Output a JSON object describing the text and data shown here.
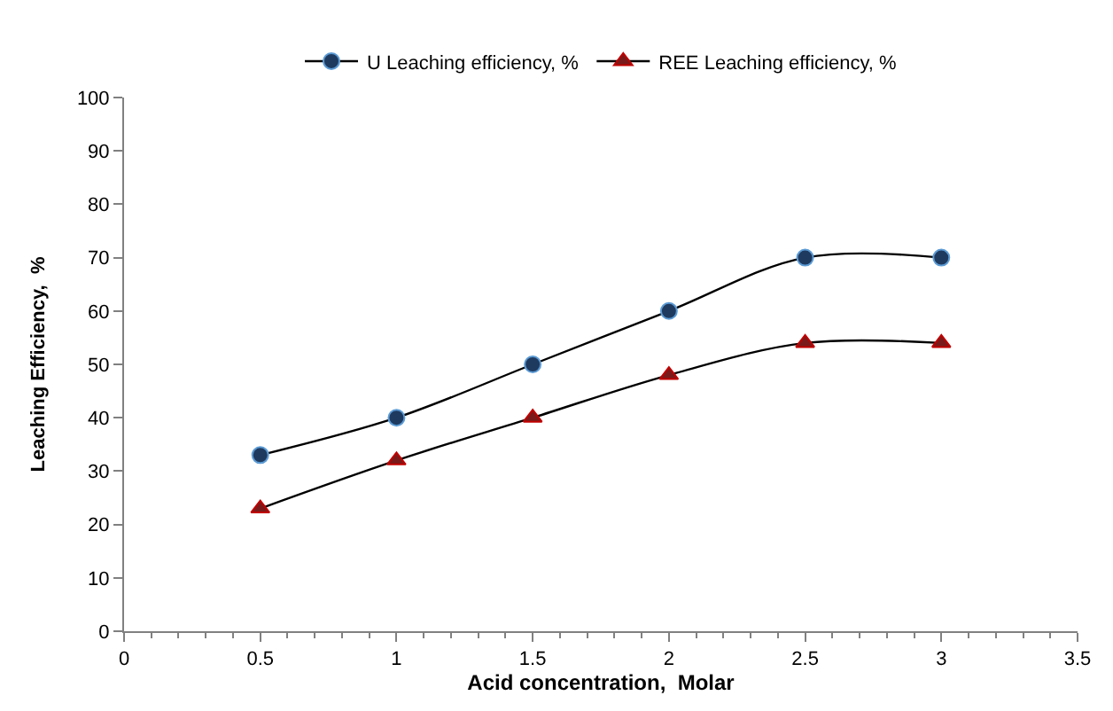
{
  "chart_data": {
    "type": "line",
    "xlabel": "Acid concentration,  Molar",
    "ylabel": "Leaching Efficiency,  %",
    "x": [
      0.5,
      1,
      1.5,
      2,
      2.5,
      3
    ],
    "series": [
      {
        "name": "U Leaching efficiency, %",
        "color": "#1f3a5f",
        "marker": "circle",
        "values": [
          33,
          40,
          50,
          60,
          70,
          70
        ]
      },
      {
        "name": "REE Leaching efficiency, %",
        "color": "#7a1a1a",
        "marker": "triangle",
        "values": [
          23,
          32,
          40,
          48,
          54,
          54
        ]
      }
    ],
    "xlim": [
      0,
      3.5
    ],
    "xticks": [
      0,
      0.5,
      1,
      1.5,
      2,
      2.5,
      3,
      3.5
    ],
    "ylim": [
      0,
      100
    ],
    "yticks": [
      0,
      10,
      20,
      30,
      40,
      50,
      60,
      70,
      80,
      90,
      100
    ],
    "legend": "top",
    "line_style": "solid"
  }
}
